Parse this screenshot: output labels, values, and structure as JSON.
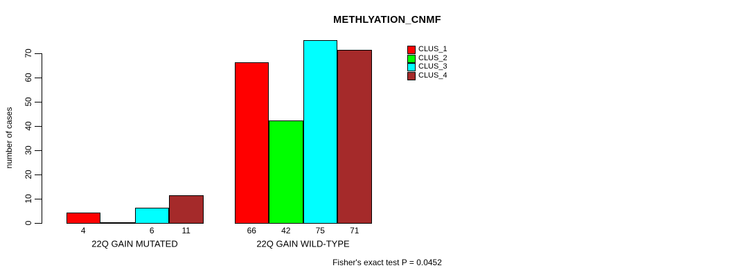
{
  "title": "METHLYATION_CNMF",
  "chart_data": {
    "type": "bar",
    "title": "METHLYATION_CNMF",
    "xlabel": "",
    "ylabel": "number of cases",
    "ylim": [
      0,
      75
    ],
    "yticks": [
      0,
      10,
      20,
      30,
      40,
      50,
      60,
      70
    ],
    "grid": false,
    "legend_position": "top-right-inside",
    "legend_border": false,
    "categories": [
      "22Q GAIN MUTATED",
      "22Q GAIN WILD-TYPE"
    ],
    "series": [
      {
        "name": "CLUS_1",
        "color": "#FF0000",
        "values": [
          4,
          66
        ]
      },
      {
        "name": "CLUS_2",
        "color": "#00FF00",
        "values": [
          0,
          42
        ]
      },
      {
        "name": "CLUS_3",
        "color": "#00FFFF",
        "values": [
          6,
          75
        ]
      },
      {
        "name": "CLUS_4",
        "color": "#A52A2A",
        "values": [
          11,
          71
        ]
      }
    ],
    "bar_value_labels": [
      [
        "4",
        "",
        "6",
        "11"
      ],
      [
        "66",
        "42",
        "75",
        "71"
      ]
    ],
    "annotation": "Fisher's exact test P = 0.0452",
    "axis_color": "#000000",
    "bar_border_color": "#000000",
    "background_color": "#FFFFFF"
  }
}
